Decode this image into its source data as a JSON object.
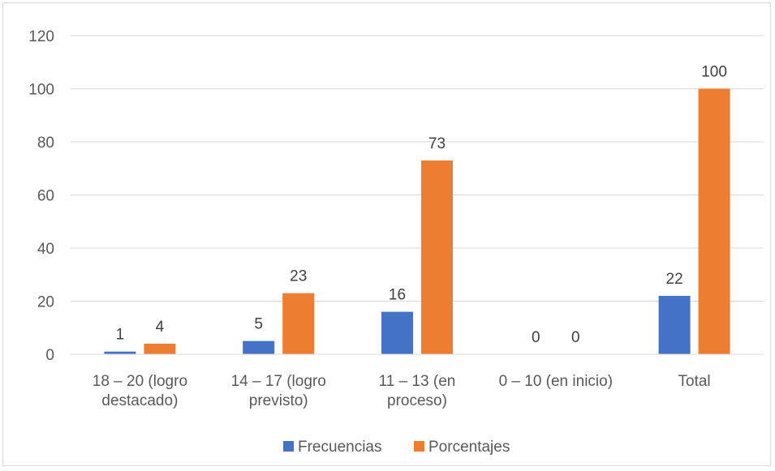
{
  "chart_data": {
    "type": "bar",
    "categories": [
      [
        "18 – 20 (logro",
        "destacado)"
      ],
      [
        "14 – 17 (logro",
        "previsto)"
      ],
      [
        "11 – 13 (en",
        "proceso)"
      ],
      [
        "0 – 10 (en inicio)"
      ],
      [
        "Total"
      ]
    ],
    "series": [
      {
        "name": "Frecuencias",
        "values": [
          1,
          5,
          16,
          0,
          22
        ],
        "color": "#4472c4"
      },
      {
        "name": "Porcentajes",
        "values": [
          4,
          23,
          73,
          0,
          100
        ],
        "color": "#ed7d31"
      }
    ],
    "ylim": [
      0,
      120
    ],
    "yticks": [
      0,
      20,
      40,
      60,
      80,
      100,
      120
    ],
    "grid": true,
    "legend_position": "bottom"
  }
}
